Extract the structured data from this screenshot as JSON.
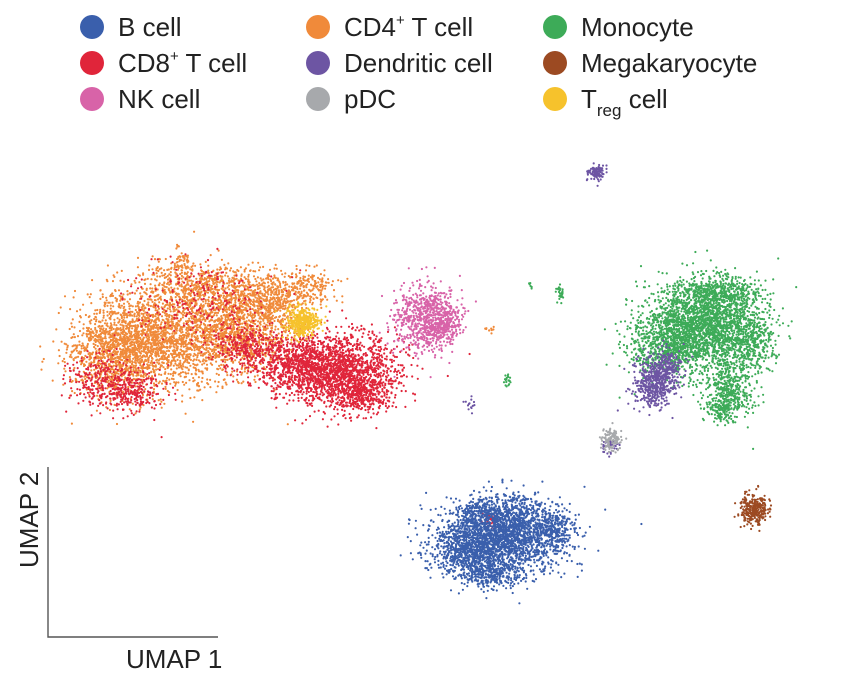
{
  "chart_data": {
    "type": "scatter",
    "title": "",
    "xlabel": "UMAP 1",
    "ylabel": "UMAP 2",
    "grid": false,
    "legend_position": "top",
    "ticks": false,
    "series": [
      {
        "key": "b",
        "name": "B cell",
        "name_parts": [
          {
            "text": "B cell"
          }
        ],
        "color": "#3a5fac",
        "clusters": [
          {
            "cx": 0.53,
            "cy": -0.42,
            "sx": 0.075,
            "sy": 0.055,
            "w": 1
          }
        ]
      },
      {
        "key": "cd8",
        "name": "CD8+ T cell",
        "name_parts": [
          {
            "text": "CD8"
          },
          {
            "text": "+",
            "style": "sup"
          },
          {
            "text": " T cell"
          }
        ],
        "color": "#e0253a",
        "clusters": [
          {
            "cx": 0.38,
            "cy": 0.12,
            "sx": 0.06,
            "sy": 0.05,
            "w": 1
          }
        ]
      },
      {
        "key": "nk",
        "name": "NK cell",
        "name_parts": [
          {
            "text": "NK cell"
          }
        ],
        "color": "#d863a8",
        "clusters": [
          {
            "cx": 0.46,
            "cy": 0.22,
            "sx": 0.025,
            "sy": 0.035,
            "w": 1
          }
        ]
      },
      {
        "key": "cd4",
        "name": "CD4+ T cell",
        "name_parts": [
          {
            "text": "CD4"
          },
          {
            "text": "+",
            "style": "sup"
          },
          {
            "text": " T cell"
          }
        ],
        "color": "#f08a3a",
        "clusters": [
          {
            "cx": 0.14,
            "cy": 0.18,
            "sx": 0.09,
            "sy": 0.075,
            "w": 1
          }
        ]
      },
      {
        "key": "dc",
        "name": "Dendritic cell",
        "name_parts": [
          {
            "text": "Dendritic cell"
          }
        ],
        "color": "#6d55a3",
        "clusters": [
          {
            "cx": 0.74,
            "cy": 0.06,
            "sx": 0.02,
            "sy": 0.03,
            "w": 1
          }
        ]
      },
      {
        "key": "pdc",
        "name": "pDC",
        "name_parts": [
          {
            "text": "pDC"
          }
        ],
        "color": "#a7a9ac",
        "clusters": [
          {
            "cx": 0.71,
            "cy": -0.12,
            "sx": 0.01,
            "sy": 0.01,
            "w": 1
          }
        ]
      },
      {
        "key": "mono",
        "name": "Monocyte",
        "name_parts": [
          {
            "text": "Monocyte"
          }
        ],
        "color": "#3dab58",
        "clusters": [
          {
            "cx": 0.82,
            "cy": 0.22,
            "sx": 0.06,
            "sy": 0.06,
            "w": 1
          }
        ]
      },
      {
        "key": "mk",
        "name": "Megakaryocyte",
        "name_parts": [
          {
            "text": "Megakaryocyte"
          }
        ],
        "color": "#9c4a22",
        "clusters": [
          {
            "cx": 0.91,
            "cy": -0.32,
            "sx": 0.012,
            "sy": 0.016,
            "w": 1
          }
        ]
      },
      {
        "key": "treg",
        "name": "Treg cell",
        "name_parts": [
          {
            "text": "T"
          },
          {
            "text": "reg",
            "style": "sub"
          },
          {
            "text": " cell"
          }
        ],
        "color": "#f6c22c",
        "clusters": [
          {
            "cx": 0.29,
            "cy": 0.23,
            "sx": 0.016,
            "sy": 0.015,
            "w": 1
          }
        ]
      }
    ],
    "legend_grid": [
      [
        "b",
        "cd4",
        "mono"
      ],
      [
        "cd8",
        "dc",
        "mk"
      ],
      [
        "nk",
        "pdc",
        "treg"
      ]
    ]
  }
}
